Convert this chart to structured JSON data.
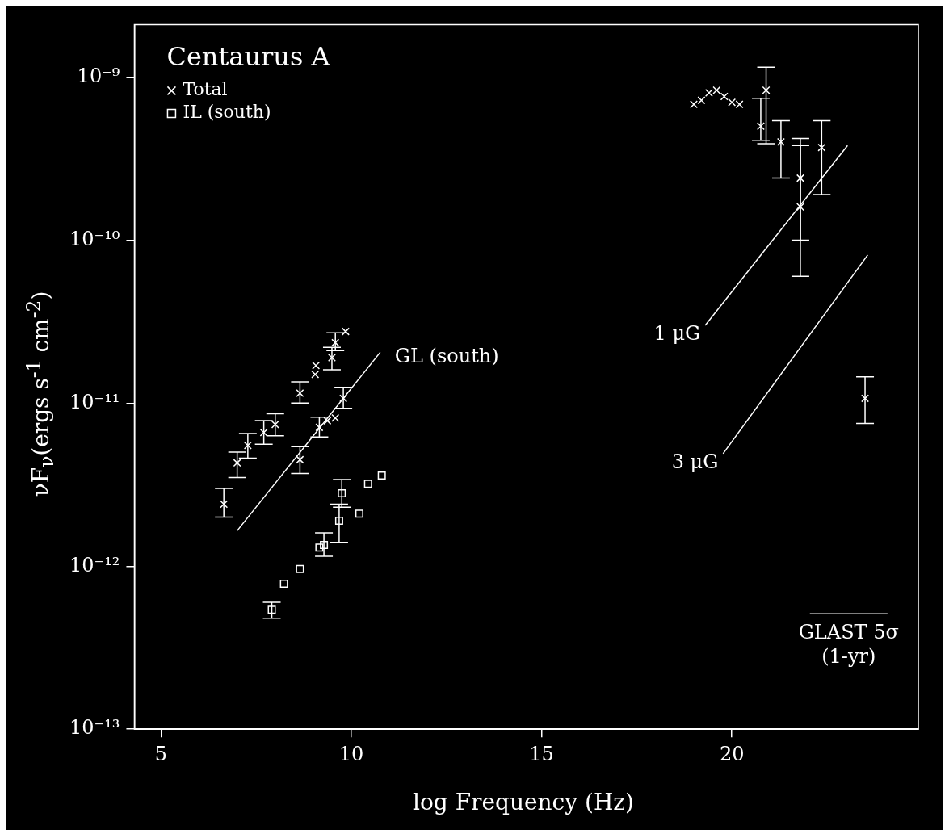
{
  "chart_data": {
    "type": "scatter",
    "xlabel": "log Frequency (Hz)",
    "ylabel": "νF$_{ν}$(ergs s$^{-1}$ cm$^{-2}$)",
    "legend_title": "Centaurus A",
    "legend": "top left",
    "grid": false,
    "log": "y",
    "xlim": [
      4.3,
      24.9
    ],
    "xticks": [
      5,
      10,
      15,
      20
    ],
    "ylim": [
      1e-13,
      2.1e-09
    ],
    "yticks": [
      {
        "value": 1e-13,
        "label": "10⁻¹³"
      },
      {
        "value": 1e-12,
        "label": "10⁻¹²"
      },
      {
        "value": 1e-11,
        "label": "10⁻¹¹"
      },
      {
        "value": 1e-10,
        "label": "10⁻¹⁰"
      },
      {
        "value": 1e-09,
        "label": "10⁻⁹"
      }
    ],
    "series": [
      {
        "name": "Total",
        "color": "#ffffff",
        "marker": "cross",
        "x": [
          6.65,
          7.0,
          7.28,
          7.7,
          8.0,
          8.65,
          9.07,
          9.05,
          9.49,
          9.58,
          9.85,
          8.65,
          9.16,
          9.37,
          9.58,
          9.79,
          19.0,
          19.2,
          19.4,
          19.6,
          19.8,
          20.0,
          20.2,
          20.76,
          20.9,
          21.29,
          21.8,
          21.8,
          22.36,
          23.5
        ],
        "values": [
          2.4e-12,
          4.3e-12,
          5.5e-12,
          6.6e-12,
          7.4e-12,
          1.15e-11,
          1.7e-11,
          1.5e-11,
          1.9e-11,
          2.35e-11,
          2.75e-11,
          4.5e-12,
          7.1e-12,
          7.8e-12,
          8.1e-12,
          1.07e-11,
          6.8e-10,
          7.2e-10,
          8e-10,
          8.3e-10,
          7.6e-10,
          7e-10,
          6.8e-10,
          5e-10,
          8.3e-10,
          4e-10,
          2.4e-10,
          1.6e-10,
          3.7e-10,
          1.07e-11
        ],
        "errors": [
          [
            2e-12,
            3e-12
          ],
          [
            3.5e-12,
            5e-12
          ],
          [
            4.6e-12,
            6.5e-12
          ],
          [
            5.6e-12,
            7.8e-12
          ],
          [
            6.3e-12,
            8.6e-12
          ],
          [
            1e-11,
            1.35e-11
          ],
          null,
          null,
          [
            1.6e-11,
            2.2e-11
          ],
          [
            2.1e-11,
            2.7e-11
          ],
          null,
          [
            3.7e-12,
            5.4e-12
          ],
          [
            6.2e-12,
            8.2e-12
          ],
          null,
          null,
          [
            9.3e-12,
            1.25e-11
          ],
          null,
          null,
          null,
          null,
          null,
          null,
          null,
          [
            4.1e-10,
            7.4e-10
          ],
          [
            3.9e-10,
            1.15e-09
          ],
          [
            2.4e-10,
            5.4e-10
          ],
          [
            1e-10,
            4.2e-10
          ],
          [
            6e-11,
            3.8e-10
          ],
          [
            1.9e-10,
            5.4e-10
          ],
          [
            7.5e-12,
            1.45e-11
          ]
        ]
      },
      {
        "name": "IL (south)",
        "color": "#ffffff",
        "marker": "square",
        "x": [
          7.91,
          8.23,
          8.65,
          9.16,
          9.28,
          9.68,
          9.75,
          10.21,
          10.44,
          10.8
        ],
        "values": [
          5.4e-13,
          7.8e-13,
          9.6e-13,
          1.3e-12,
          1.35e-12,
          1.9e-12,
          2.8e-12,
          2.1e-12,
          3.2e-12,
          3.6e-12
        ],
        "errors": [
          [
            4.8e-13,
            6e-13
          ],
          null,
          null,
          null,
          [
            1.15e-12,
            1.6e-12
          ],
          [
            1.4e-12,
            2.4e-12
          ],
          [
            2.3e-12,
            3.4e-12
          ],
          null,
          null,
          null
        ]
      },
      {
        "name": "GL (south)",
        "type": "line",
        "color": "#ffffff",
        "marker": "none",
        "x": [
          7.0,
          10.76
        ],
        "values": [
          1.65e-12,
          2.05e-11
        ]
      },
      {
        "name": "1 μG",
        "type": "line",
        "color": "#ffffff",
        "marker": "none",
        "x": [
          19.3,
          23.04
        ],
        "values": [
          3e-11,
          3.8e-10
        ]
      },
      {
        "name": "3 μG",
        "type": "line",
        "color": "#ffffff",
        "marker": "none",
        "x": [
          19.77,
          23.57
        ],
        "values": [
          4.9e-12,
          8.1e-11
        ]
      },
      {
        "name": "GLAST 5σ (1-yr)",
        "type": "line",
        "color": "#ffffff",
        "marker": "none",
        "x": [
          22.05,
          24.09
        ],
        "values": [
          5.1e-13,
          5.1e-13
        ]
      }
    ]
  }
}
